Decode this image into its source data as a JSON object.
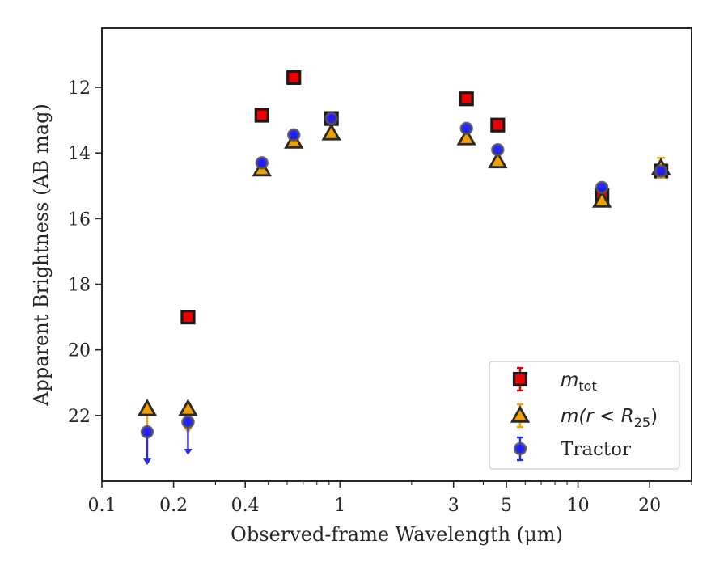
{
  "chart_data": {
    "type": "scatter",
    "xlabel": "Observed-frame Wavelength (μm)",
    "ylabel": "Apparent Brightness (AB mag)",
    "x_scale": "log",
    "y_inverted": true,
    "xlim": [
      0.1,
      30
    ],
    "ylim": [
      24.0,
      10.2
    ],
    "x_ticks": [
      0.1,
      0.2,
      0.4,
      1,
      3,
      5,
      10,
      20
    ],
    "x_tick_labels": [
      "0.1",
      "0.2",
      "0.4",
      "1",
      "3",
      "5",
      "10",
      "20"
    ],
    "y_ticks": [
      12,
      14,
      16,
      18,
      20,
      22
    ],
    "y_tick_labels": [
      "12",
      "14",
      "16",
      "18",
      "20",
      "22"
    ],
    "grid": false,
    "legend_position": "lower-right",
    "series": [
      {
        "name": "m_tot",
        "legend_main": "m",
        "legend_sub": "tot",
        "marker": "square",
        "fill": "#ee0000",
        "edge": "#1a1a1a",
        "errcolor": "#dd0000",
        "points": [
          {
            "x": 0.23,
            "y": 19.0
          },
          {
            "x": 0.47,
            "y": 12.85
          },
          {
            "x": 0.64,
            "y": 11.7
          },
          {
            "x": 0.92,
            "y": 12.95
          },
          {
            "x": 3.4,
            "y": 12.35
          },
          {
            "x": 4.6,
            "y": 13.15
          },
          {
            "x": 12.6,
            "y": 15.3
          },
          {
            "x": 22.3,
            "y": 14.55
          }
        ]
      },
      {
        "name": "m(r < R25)",
        "legend_main": "m(r < R",
        "legend_sub": "25",
        "legend_tail": ")",
        "marker": "triangle",
        "fill": "#f0a000",
        "edge": "#2a2a2a",
        "errcolor": "#f0a000",
        "points": [
          {
            "x": 0.155,
            "y": 21.8,
            "upper_limit": true
          },
          {
            "x": 0.23,
            "y": 21.8,
            "upper_limit": true
          },
          {
            "x": 0.47,
            "y": 14.5
          },
          {
            "x": 0.64,
            "y": 13.65
          },
          {
            "x": 0.92,
            "y": 13.4
          },
          {
            "x": 3.4,
            "y": 13.55
          },
          {
            "x": 4.6,
            "y": 14.25
          },
          {
            "x": 12.6,
            "y": 15.45
          },
          {
            "x": 22.3,
            "y": 14.45,
            "yerr": 0.3
          }
        ]
      },
      {
        "name": "Tractor",
        "legend_main": "Tractor",
        "marker": "circle",
        "fill": "#1a1aff",
        "edge": "#555555",
        "errcolor": "#2a2aee",
        "points": [
          {
            "x": 0.155,
            "y": 22.5,
            "upper_limit": true
          },
          {
            "x": 0.23,
            "y": 22.2,
            "upper_limit": true
          },
          {
            "x": 0.47,
            "y": 14.3
          },
          {
            "x": 0.64,
            "y": 13.45
          },
          {
            "x": 0.92,
            "y": 12.95
          },
          {
            "x": 3.4,
            "y": 13.25
          },
          {
            "x": 4.6,
            "y": 13.9
          },
          {
            "x": 12.6,
            "y": 15.05
          },
          {
            "x": 22.3,
            "y": 14.55
          }
        ]
      }
    ]
  }
}
